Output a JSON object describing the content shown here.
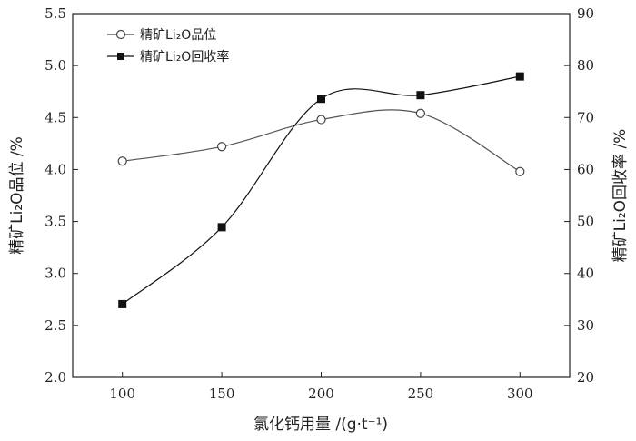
{
  "chart_data": {
    "type": "line",
    "title": "",
    "xlabel": "氯化钙用量 /(g·t⁻¹)",
    "ylabel_left": "精矿Li₂O品位 /%",
    "ylabel_right": "精矿Li₂O回收率 /%",
    "x": [
      100,
      150,
      200,
      250,
      300
    ],
    "xlim": [
      75,
      325
    ],
    "ylim_left": [
      2.0,
      5.5
    ],
    "ylim_right": [
      20,
      90
    ],
    "x_ticks": [
      "100",
      "150",
      "200",
      "250",
      "300"
    ],
    "y_ticks_left": [
      "2.0",
      "2.5",
      "3.0",
      "3.5",
      "4.0",
      "4.5",
      "5.0",
      "5.5"
    ],
    "y_ticks_right": [
      "20",
      "30",
      "40",
      "50",
      "60",
      "70",
      "80",
      "90"
    ],
    "series": [
      {
        "name": "精矿Li₂O品位",
        "axis": "left",
        "marker": "open-circle",
        "values": [
          4.08,
          4.22,
          4.48,
          4.54,
          3.98
        ]
      },
      {
        "name": "精矿Li₂O回收率",
        "axis": "right",
        "marker": "filled-square",
        "values": [
          34.1,
          48.9,
          73.6,
          74.3,
          77.9
        ]
      }
    ],
    "legend_position": "top-left",
    "grid": false
  }
}
